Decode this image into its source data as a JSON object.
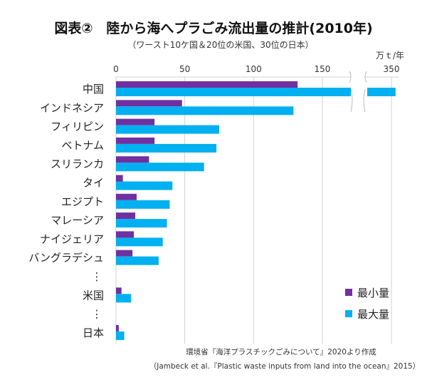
{
  "chart_data": {
    "type": "bar",
    "orientation": "horizontal",
    "title": "図表②　陸から海へプラごみ流出量の推計(2010年)",
    "subtitle": "（ワースト10ケ国＆20位の米国、30位の日本）",
    "unit": "万ｔ/年",
    "categories": [
      "中国",
      "インドネシア",
      "フィリピン",
      "ベトナム",
      "スリランカ",
      "タイ",
      "エジプト",
      "マレーシア",
      "ナイジェリア",
      "バングラデシュ",
      "⋮",
      "米国",
      "⋮",
      "日本"
    ],
    "x_ticks": [
      "0",
      "50",
      "100",
      "150",
      "350"
    ],
    "axis_break": [
      170,
      340
    ],
    "xlim": [
      0,
      355
    ],
    "grid": true,
    "legend_position": "bottom-right",
    "series": [
      {
        "name": "最小量",
        "color": "#7030a0",
        "values": [
          132,
          48,
          28,
          28,
          24,
          5,
          15,
          14,
          13,
          12,
          null,
          4,
          null,
          2
        ]
      },
      {
        "name": "最大量",
        "color": "#00b0f0",
        "values": [
          353,
          129,
          75,
          73,
          64,
          41,
          39,
          37,
          34,
          31,
          null,
          11,
          null,
          6
        ]
      }
    ],
    "source_lines": [
      "環境省『海洋プラスチックごみについて』2020より作成",
      "（Jambeck et al.『Plastic waste inputs from land into the ocean』2015）"
    ]
  }
}
